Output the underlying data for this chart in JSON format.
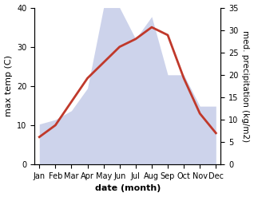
{
  "months": [
    "Jan",
    "Feb",
    "Mar",
    "Apr",
    "May",
    "Jun",
    "Jul",
    "Aug",
    "Sep",
    "Oct",
    "Nov",
    "Dec"
  ],
  "max_temp": [
    7,
    10,
    16,
    22,
    26,
    30,
    32,
    35,
    33,
    22,
    13,
    8
  ],
  "precipitation": [
    9,
    10,
    12,
    17,
    35,
    35,
    28,
    33,
    20,
    20,
    13,
    13
  ],
  "temp_color": "#c0392b",
  "precip_fill_color": "#c5cce8",
  "left_ylim": [
    0,
    40
  ],
  "right_ylim": [
    0,
    35
  ],
  "left_ylabel": "max temp (C)",
  "right_ylabel": "med. precipitation (kg/m2)",
  "xlabel": "date (month)",
  "left_yticks": [
    0,
    10,
    20,
    30,
    40
  ],
  "right_yticks": [
    0,
    5,
    10,
    15,
    20,
    25,
    30,
    35
  ],
  "label_fontsize": 8,
  "tick_fontsize": 7,
  "line_width": 2.0,
  "background_color": "#ffffff"
}
